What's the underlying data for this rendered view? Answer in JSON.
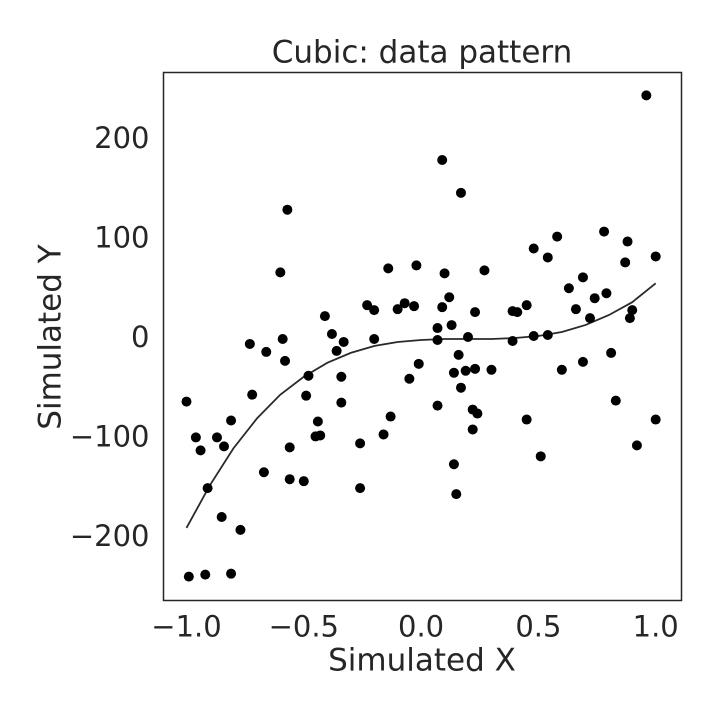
{
  "chart_data": {
    "type": "scatter",
    "title": "Cubic: data pattern",
    "xlabel": "Simulated X",
    "ylabel": "Simulated Y",
    "xlim": [
      -1.098,
      1.11
    ],
    "ylim": [
      -263,
      268
    ],
    "xticks": [
      {
        "value": -1.0,
        "label": "−1.0"
      },
      {
        "value": -0.5,
        "label": "−0.5"
      },
      {
        "value": 0.0,
        "label": "0.0"
      },
      0.5,
      {
        "value": 1.0,
        "label": "1.0"
      }
    ],
    "yticks": [
      {
        "value": -200,
        "label": "−200"
      },
      {
        "value": -100,
        "label": "−100"
      },
      0,
      100,
      200
    ],
    "grid": false,
    "color": "#000000",
    "x": [
      -1.0,
      -0.99,
      -0.96,
      -0.94,
      -0.92,
      -0.91,
      -0.87,
      -0.85,
      -0.84,
      -0.81,
      -0.81,
      -0.77,
      -0.73,
      -0.72,
      -0.67,
      -0.66,
      -0.6,
      -0.59,
      -0.58,
      -0.57,
      -0.56,
      -0.56,
      -0.5,
      -0.49,
      -0.48,
      -0.45,
      -0.44,
      -0.43,
      -0.41,
      -0.38,
      -0.36,
      -0.34,
      -0.34,
      -0.33,
      -0.26,
      -0.26,
      -0.23,
      -0.2,
      -0.2,
      -0.16,
      -0.14,
      -0.13,
      -0.1,
      -0.07,
      -0.05,
      -0.03,
      -0.02,
      -0.01,
      0.07,
      0.07,
      0.07,
      0.09,
      0.09,
      0.1,
      0.12,
      0.13,
      0.14,
      0.14,
      0.15,
      0.16,
      0.17,
      0.17,
      0.19,
      0.2,
      0.22,
      0.22,
      0.23,
      0.23,
      0.24,
      0.27,
      0.3,
      0.39,
      0.39,
      0.41,
      0.45,
      0.45,
      0.48,
      0.48,
      0.51,
      0.54,
      0.54,
      0.58,
      0.6,
      0.63,
      0.66,
      0.69,
      0.69,
      0.72,
      0.74,
      0.78,
      0.79,
      0.81,
      0.83,
      0.87,
      0.88,
      0.89,
      0.9,
      0.92,
      0.96,
      1.0,
      1.0
    ],
    "values": [
      -63,
      -239,
      -99,
      -112,
      -237,
      -150,
      -99,
      -179,
      -108,
      -82,
      -236,
      -192,
      -5,
      -56,
      -134,
      -13,
      67,
      0,
      -22,
      130,
      -109,
      -141,
      -143,
      -57,
      -37,
      -98,
      -83,
      -97,
      23,
      5,
      -12,
      -38,
      -64,
      -3,
      -105,
      -150,
      34,
      0,
      29,
      -96,
      71,
      -78,
      30,
      36,
      -40,
      33,
      74,
      -25,
      -1,
      -67,
      11,
      180,
      32,
      66,
      42,
      14,
      -34,
      -126,
      -156,
      -16,
      147,
      -49,
      -32,
      2,
      -71,
      -91,
      27,
      -30,
      -75,
      69,
      -31,
      -2,
      28,
      27,
      34,
      -81,
      91,
      3,
      -118,
      82,
      4,
      103,
      -31,
      51,
      30,
      62,
      -23,
      21,
      41,
      108,
      46,
      -14,
      -62,
      77,
      98,
      21,
      29,
      -107,
      245,
      -81,
      83
    ],
    "curve": {
      "color": "#2a2a2a",
      "x": [
        -1.0,
        -0.9,
        -0.8,
        -0.7,
        -0.6,
        -0.5,
        -0.4,
        -0.3,
        -0.2,
        -0.1,
        0.0,
        0.1,
        0.2,
        0.3,
        0.4,
        0.5,
        0.6,
        0.7,
        0.8,
        0.9,
        1.0
      ],
      "values": [
        -190,
        -147,
        -110,
        -80,
        -56,
        -38,
        -24,
        -14,
        -7,
        -3,
        -1,
        0,
        0,
        0,
        1,
        3,
        7,
        14,
        24,
        37,
        56
      ]
    }
  }
}
